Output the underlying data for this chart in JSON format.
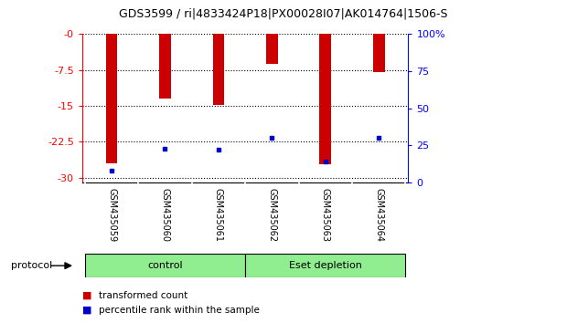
{
  "title": "GDS3599 / ri|4833424P18|PX00028I07|AK014764|1506-S",
  "samples": [
    "GSM435059",
    "GSM435060",
    "GSM435061",
    "GSM435062",
    "GSM435063",
    "GSM435064"
  ],
  "transformed_count": [
    -27.0,
    -13.5,
    -14.8,
    -6.2,
    -27.2,
    -8.0
  ],
  "percentile_rank": [
    5.0,
    20.0,
    19.5,
    27.5,
    11.5,
    27.5
  ],
  "bar_color": "#CC0000",
  "marker_color": "#0000CC",
  "left_yticks": [
    0,
    -7.5,
    -15,
    -22.5,
    -30
  ],
  "left_ylabels": [
    "-0",
    "-7.5",
    "-15",
    "-22.5",
    "-30"
  ],
  "right_yticks": [
    100,
    75,
    50,
    25,
    0
  ],
  "right_ylabels": [
    "100%",
    "75",
    "50",
    "25",
    "0"
  ],
  "ylim_left": [
    -31,
    0
  ],
  "ylim_right": [
    0,
    100
  ],
  "background_color": "#ffffff",
  "tick_area_color": "#c0c0c0",
  "group_color": "#90EE90",
  "groups": [
    {
      "label": "control",
      "start": 0,
      "end": 2
    },
    {
      "label": "Eset depletion",
      "start": 3,
      "end": 5
    }
  ],
  "legend_red_label": "transformed count",
  "legend_blue_label": "percentile rank within the sample",
  "protocol_label": "protocol"
}
